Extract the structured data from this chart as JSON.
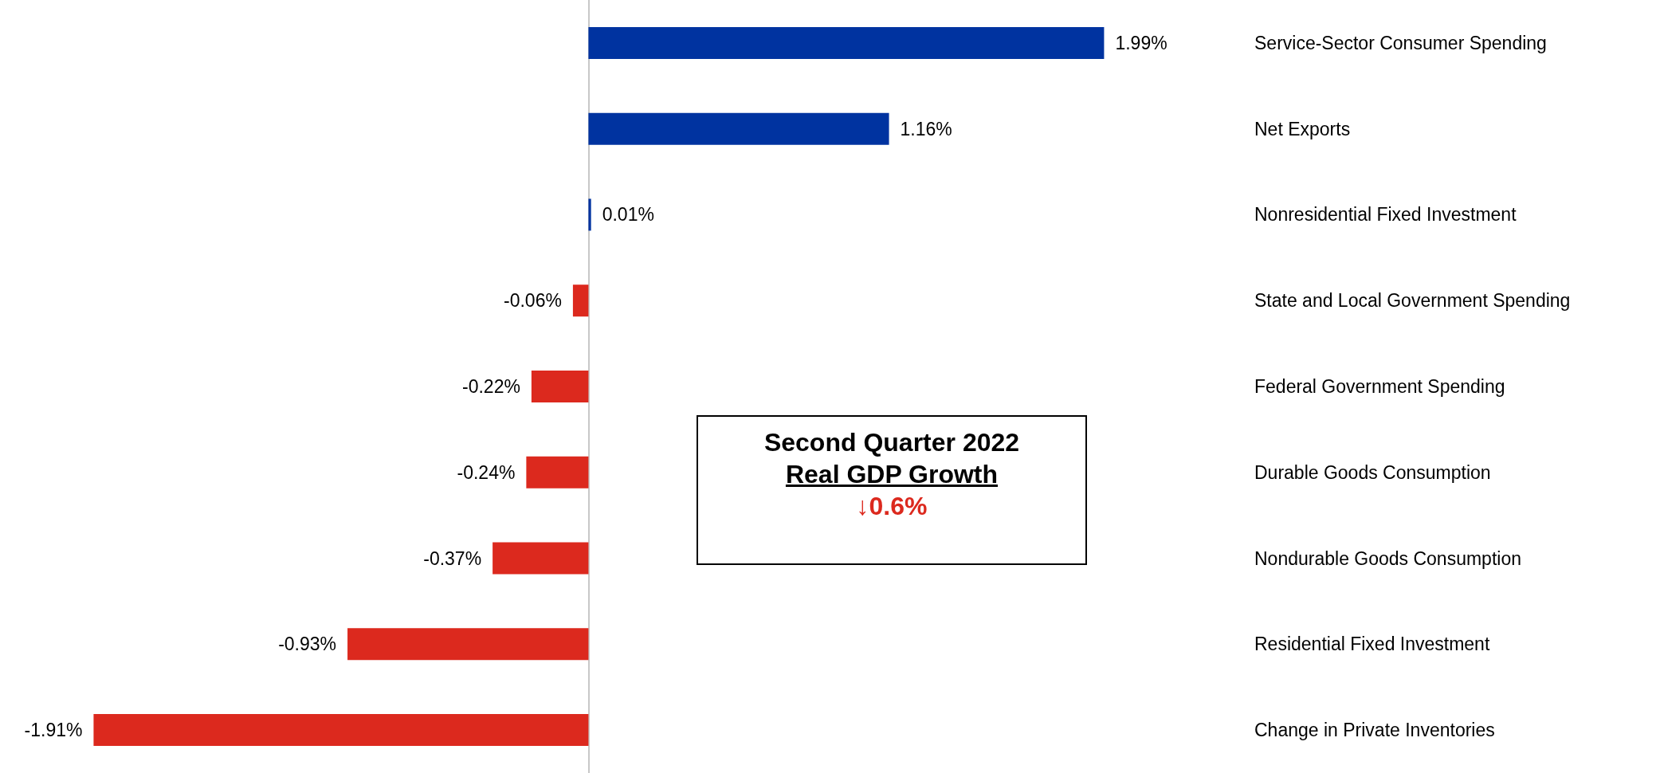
{
  "chart_data": {
    "type": "bar",
    "orientation": "horizontal",
    "categories": [
      "Service-Sector Consumer Spending",
      "Net Exports",
      "Nonresidential Fixed Investment",
      "State and Local Government Spending",
      "Federal Government Spending",
      "Durable Goods Consumption",
      "Nondurable Goods Consumption",
      "Residential Fixed Investment",
      "Change in Private Inventories"
    ],
    "values": [
      1.99,
      1.16,
      0.01,
      -0.06,
      -0.22,
      -0.24,
      -0.37,
      -0.93,
      -1.91
    ],
    "colors": [
      "#0033a0",
      "#0033a0",
      "#0033a0",
      "#dc291e",
      "#dc291e",
      "#dc291e",
      "#dc291e",
      "#dc291e",
      "#dc291e"
    ],
    "value_labels": [
      "1.99%",
      "1.16%",
      "0.01%",
      "-0.06%",
      "-0.22%",
      "-0.24%",
      "-0.37%",
      "-0.93%",
      "-1.91%"
    ],
    "tick_labels": "y",
    "annotations": [
      "Second Quarter 2022",
      "Real GDP Growth",
      "↓0.6%"
    ]
  }
}
